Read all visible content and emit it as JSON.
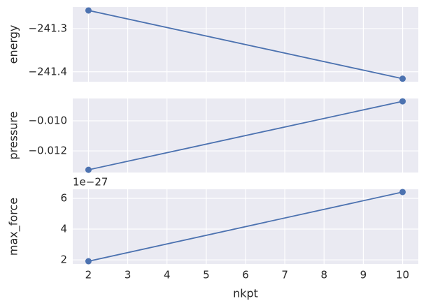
{
  "chart_data": [
    {
      "type": "line",
      "ylabel": "energy",
      "x": [
        2,
        10
      ],
      "values": [
        -241.258,
        -241.416
      ],
      "color": "#4c72b0",
      "xlim": [
        1.6,
        10.4
      ],
      "xticks": [
        2,
        3,
        4,
        5,
        6,
        7,
        8,
        9,
        10
      ],
      "ylim": [
        -241.423,
        -241.25
      ],
      "yticks": [
        {
          "value": -241.4,
          "label": "−241.4"
        },
        {
          "value": -241.3,
          "label": "−241.3"
        }
      ],
      "grid": true
    },
    {
      "type": "line",
      "ylabel": "pressure",
      "x": [
        2,
        10
      ],
      "values": [
        -0.01326,
        -0.0087
      ],
      "color": "#4c72b0",
      "xlim": [
        1.6,
        10.4
      ],
      "xticks": [
        2,
        3,
        4,
        5,
        6,
        7,
        8,
        9,
        10
      ],
      "ylim": [
        -0.01344,
        -0.00851
      ],
      "yticks": [
        {
          "value": -0.012,
          "label": "−0.012"
        },
        {
          "value": -0.01,
          "label": "−0.010"
        }
      ],
      "grid": true
    },
    {
      "type": "line",
      "ylabel": "max_force",
      "xlabel": "nkpt",
      "offset_text": "1e−27",
      "x": [
        2,
        10
      ],
      "values": [
        1.91,
        6.41
      ],
      "color": "#4c72b0",
      "xlim": [
        1.6,
        10.4
      ],
      "xticks": [
        2,
        3,
        4,
        5,
        6,
        7,
        8,
        9,
        10
      ],
      "ylim": [
        1.73,
        6.59
      ],
      "yticks": [
        2,
        4,
        6
      ],
      "grid": true
    }
  ]
}
